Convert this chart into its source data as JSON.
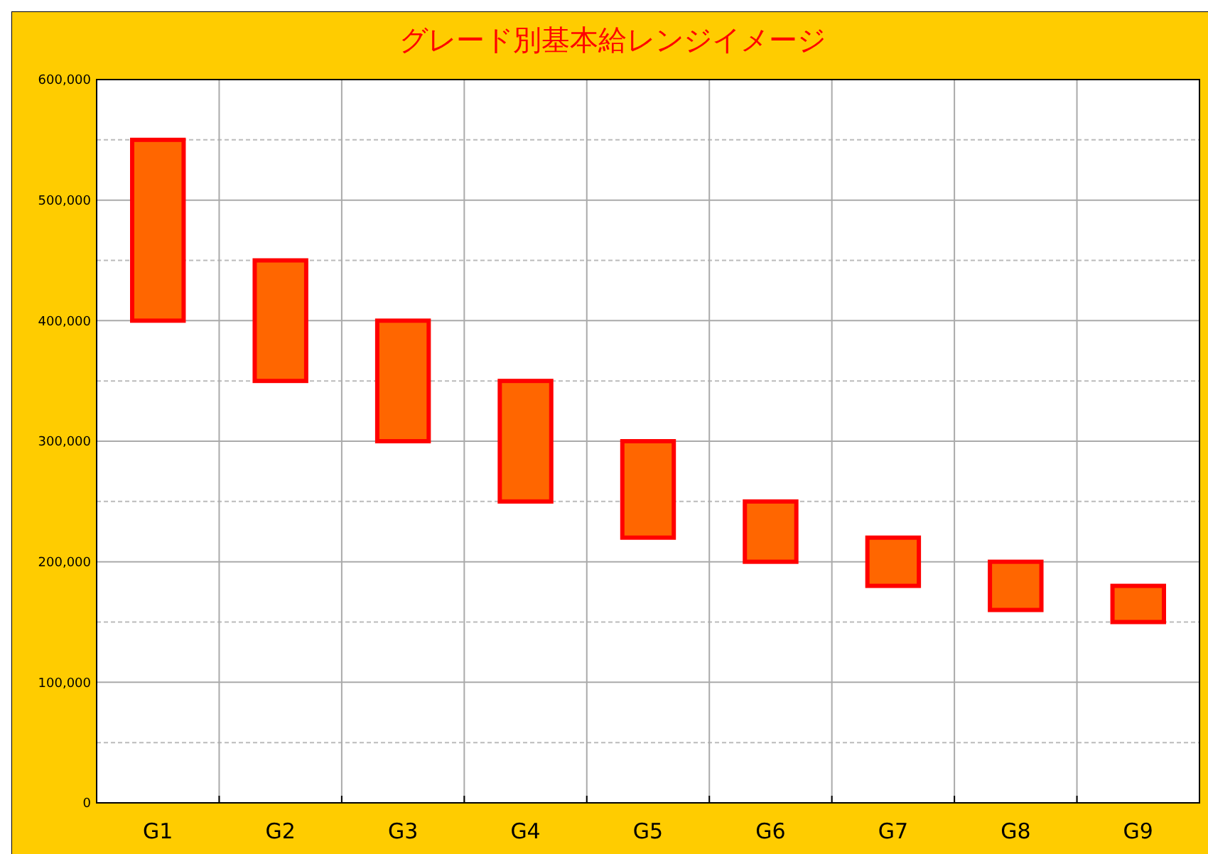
{
  "chart_data": {
    "type": "bar",
    "title": "グレード別基本給レンジイメージ",
    "categories": [
      "G1",
      "G2",
      "G3",
      "G4",
      "G5",
      "G6",
      "G7",
      "G8",
      "G9"
    ],
    "base": [
      400000,
      350000,
      300000,
      250000,
      220000,
      200000,
      180000,
      160000,
      150000
    ],
    "values": [
      150000,
      100000,
      100000,
      100000,
      80000,
      50000,
      40000,
      40000,
      30000
    ],
    "color": "#ff6600",
    "ylim": [
      0,
      600000
    ],
    "yticks": [
      {
        "value": 0,
        "label": "0"
      },
      {
        "value": 50000,
        "label": null
      },
      {
        "value": 100000,
        "label": "100,000"
      },
      {
        "value": 150000,
        "label": null
      },
      {
        "value": 200000,
        "label": "200,000"
      },
      {
        "value": 250000,
        "label": null
      },
      {
        "value": 300000,
        "label": "300,000"
      },
      {
        "value": 350000,
        "label": null
      },
      {
        "value": 400000,
        "label": "400,000"
      },
      {
        "value": 450000,
        "label": null
      },
      {
        "value": 500000,
        "label": "500,000"
      },
      {
        "value": 550000,
        "label": null
      },
      {
        "value": 600000,
        "label": "600,000"
      }
    ],
    "grid": true
  }
}
